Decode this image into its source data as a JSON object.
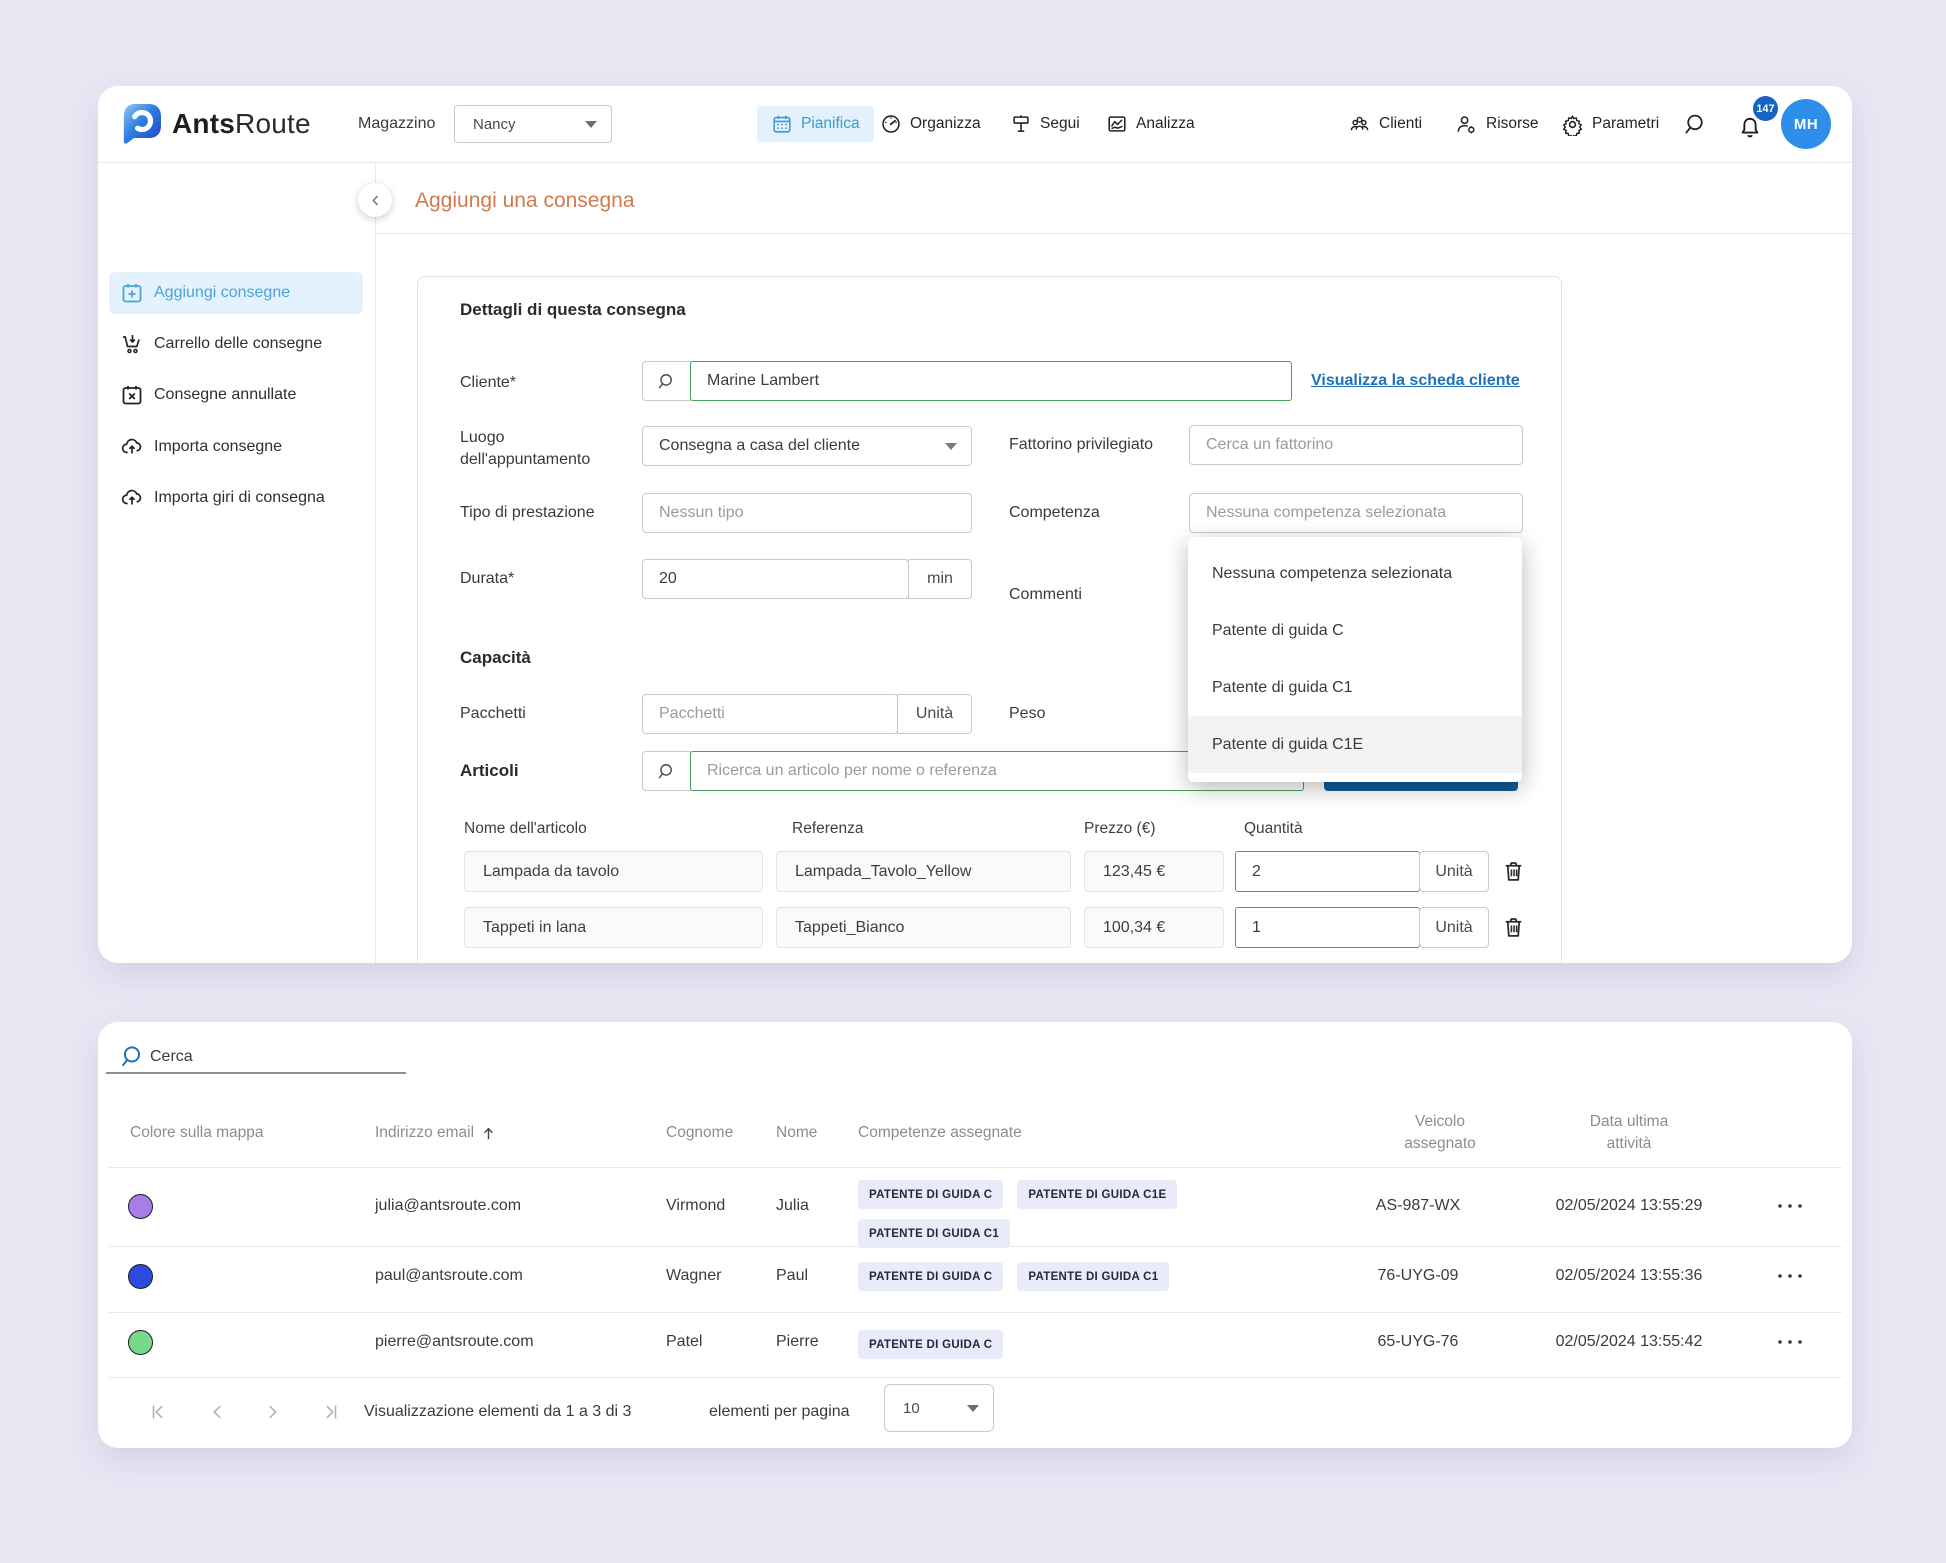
{
  "header": {
    "logo": {
      "bold": "Ants",
      "regular": "Route"
    },
    "warehouse_label": "Magazzino",
    "warehouse_value": "Nancy",
    "nav": [
      {
        "label": "Pianifica",
        "icon": "calendar-icon",
        "active": true
      },
      {
        "label": "Organizza",
        "icon": "speedometer-icon",
        "active": false
      },
      {
        "label": "Segui",
        "icon": "signpost-icon",
        "active": false
      },
      {
        "label": "Analizza",
        "icon": "chart-icon",
        "active": false
      }
    ],
    "nav_right": [
      {
        "label": "Clienti",
        "icon": "people-icon"
      },
      {
        "label": "Risorse",
        "icon": "person-gear-icon"
      },
      {
        "label": "Parametri",
        "icon": "gear-icon"
      }
    ],
    "notification_count": "147",
    "avatar_initials": "MH"
  },
  "sidebar": {
    "items": [
      {
        "label": "Aggiungi consegne",
        "icon": "calendar-plus-icon",
        "active": true
      },
      {
        "label": "Carrello delle consegne",
        "icon": "cart-icon",
        "active": false
      },
      {
        "label": "Consegne annullate",
        "icon": "calendar-x-icon",
        "active": false
      },
      {
        "label": "Importa consegne",
        "icon": "cloud-upload-icon",
        "active": false
      },
      {
        "label": "Importa giri di consegna",
        "icon": "cloud-upload-icon",
        "active": false
      }
    ]
  },
  "page": {
    "title": "Aggiungi una consegna"
  },
  "form": {
    "section_title": "Dettagli di questa consegna",
    "cliente_label": "Cliente*",
    "cliente_value": "Marine Lambert",
    "view_client_link": "Visualizza la scheda cliente",
    "luogo_label_line1": "Luogo",
    "luogo_label_line2": "dell'appuntamento",
    "luogo_value": "Consegna a casa del cliente",
    "fattorino_label": "Fattorino privilegiato",
    "fattorino_placeholder": "Cerca un fattorino",
    "tipo_label": "Tipo di prestazione",
    "tipo_placeholder": "Nessun tipo",
    "competenza_label": "Competenza",
    "competenza_placeholder": "Nessuna competenza selezionata",
    "dropdown_options": [
      {
        "label": "Nessuna competenza selezionata",
        "highlighted": false
      },
      {
        "label": "Patente di guida C",
        "highlighted": false
      },
      {
        "label": "Patente di guida C1",
        "highlighted": false
      },
      {
        "label": "Patente di guida C1E",
        "highlighted": true
      }
    ],
    "durata_label": "Durata*",
    "durata_value": "20",
    "durata_unit": "min",
    "commenti_label": "Commenti",
    "capacita_title": "Capacità",
    "pacchetti_label": "Pacchetti",
    "pacchetti_placeholder": "Pacchetti",
    "unita_suffix": "Unità",
    "peso_label": "Peso",
    "articoli_label": "Articoli",
    "articoli_placeholder": "Ricerca un articolo per nome o referenza",
    "items_table": {
      "headers": [
        "Nome dell'articolo",
        "Referenza",
        "Prezzo (€)",
        "Quantità"
      ],
      "rows": [
        {
          "nome": "Lampada da tavolo",
          "referenza": "Lampada_Tavolo_Yellow",
          "prezzo": "123,45 €",
          "quantita": "2",
          "unit": "Unità"
        },
        {
          "nome": "Tappeti in lana",
          "referenza": "Tappeti_Bianco",
          "prezzo": "100,34 €",
          "quantita": "1",
          "unit": "Unità"
        }
      ]
    }
  },
  "drivers_panel": {
    "search_placeholder": "Cerca",
    "table": {
      "headers": {
        "color": "Colore sulla mappa",
        "email": "Indirizzo email",
        "cognome": "Cognome",
        "nome": "Nome",
        "competenze": "Competenze assegnate",
        "veicolo_line1": "Veicolo",
        "veicolo_line2": "assegnato",
        "data_line1": "Data ultima",
        "data_line2": "attività"
      },
      "rows": [
        {
          "color": "#a97ce8",
          "email": "julia@antsroute.com",
          "cognome": "Virmond",
          "nome": "Julia",
          "competenze": [
            "PATENTE DI GUIDA C",
            "PATENTE DI GUIDA C1E",
            "PATENTE DI GUIDA C1"
          ],
          "veicolo": "AS-987-WX",
          "data": "02/05/2024 13:55:29"
        },
        {
          "color": "#2b4be0",
          "email": "paul@antsroute.com",
          "cognome": "Wagner",
          "nome": "Paul",
          "competenze": [
            "PATENTE DI GUIDA C",
            "PATENTE DI GUIDA C1"
          ],
          "veicolo": "76-UYG-09",
          "data": "02/05/2024 13:55:36"
        },
        {
          "color": "#77d989",
          "email": "pierre@antsroute.com",
          "cognome": "Patel",
          "nome": "Pierre",
          "competenze": [
            "PATENTE DI GUIDA C"
          ],
          "veicolo": "65-UYG-76",
          "data": "02/05/2024 13:55:42"
        }
      ]
    },
    "pagination": {
      "info": "Visualizzazione elementi da 1 a 3 di 3",
      "per_page_label": "elementi per pagina",
      "per_page_value": "10"
    }
  }
}
